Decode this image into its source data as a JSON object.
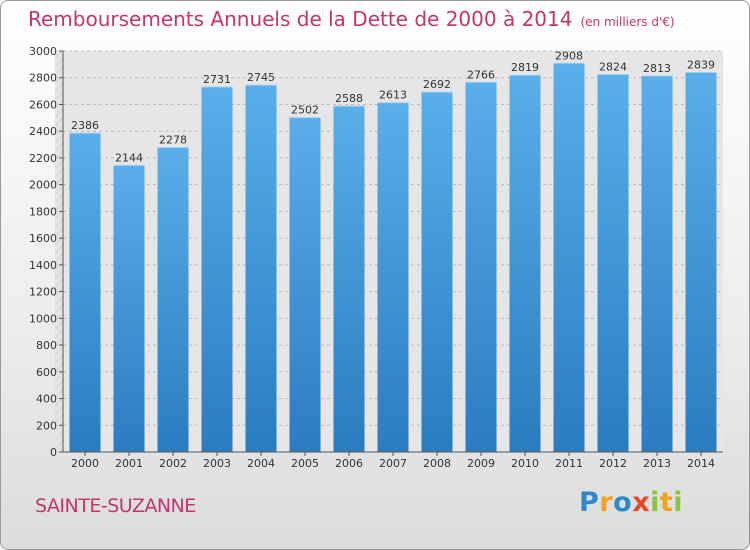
{
  "header": {
    "title": "Remboursements Annuels de la Dette de 2000 à 2014",
    "subtitle": "(en milliers d'€)"
  },
  "footer": {
    "city": "SAINTE-SUZANNE",
    "brand": [
      "P",
      "r",
      "o",
      "x",
      "i",
      "t",
      "i"
    ]
  },
  "colors": {
    "title": "#c2366e",
    "bar_light": "#5aaeea",
    "bar_dark": "#2a7cc0",
    "grid": "#bbbbbb",
    "plot_background": "#e6e6e6"
  },
  "chart_data": {
    "type": "bar",
    "title": "Remboursements Annuels de la Dette de 2000 à 2014",
    "subtitle": "(en milliers d'€)",
    "xlabel": "",
    "ylabel": "",
    "categories": [
      "2000",
      "2001",
      "2002",
      "2003",
      "2004",
      "2005",
      "2006",
      "2007",
      "2008",
      "2009",
      "2010",
      "2011",
      "2012",
      "2013",
      "2014"
    ],
    "values": [
      2386,
      2144,
      2278,
      2731,
      2745,
      2502,
      2588,
      2613,
      2692,
      2766,
      2819,
      2908,
      2824,
      2813,
      2839
    ],
    "ylim": [
      0,
      3000
    ],
    "yticks": [
      "0",
      "200",
      "400",
      "600",
      "800",
      "1000",
      "1200",
      "1400",
      "1600",
      "1800",
      "2000",
      "2200",
      "2400",
      "2600",
      "2800",
      "3000"
    ],
    "grid": true,
    "data_labels": true
  }
}
